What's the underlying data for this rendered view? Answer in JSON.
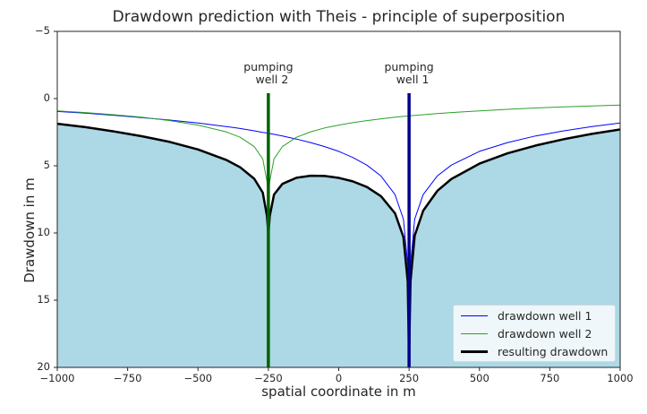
{
  "chart_data": {
    "type": "line",
    "title": "Drawdown prediction with Theis - principle of superposition",
    "xlabel": "spatial coordinate in m",
    "ylabel": "Drawdown in m",
    "xlim": [
      -1000,
      1000
    ],
    "ylim": [
      20,
      -5
    ],
    "y_inverted": true,
    "grid": false,
    "legend_position": "lower right",
    "xticks": [
      -1000,
      -750,
      -500,
      -250,
      0,
      250,
      500,
      750,
      1000
    ],
    "xtick_labels": [
      "−1000",
      "−750",
      "−500",
      "−250",
      "0",
      "250",
      "500",
      "750",
      "1000"
    ],
    "yticks": [
      -5,
      0,
      5,
      10,
      15,
      20
    ],
    "ytick_labels": [
      "−5",
      "0",
      "5",
      "10",
      "15",
      "20"
    ],
    "x": [
      -1000,
      -900,
      -800,
      -700,
      -600,
      -500,
      -400,
      -350,
      -300,
      -270,
      -255,
      -250,
      -245,
      -230,
      -200,
      -150,
      -100,
      -50,
      0,
      50,
      100,
      150,
      200,
      230,
      245,
      250,
      255,
      270,
      300,
      350,
      400,
      500,
      600,
      700,
      800,
      900,
      1000
    ],
    "series": [
      {
        "name": "drawdown well 1",
        "color": "#0000ff",
        "width": 1,
        "values": [
          0.96,
          1.09,
          1.24,
          1.41,
          1.6,
          1.82,
          2.08,
          2.23,
          2.4,
          2.51,
          2.56,
          2.58,
          2.6,
          2.66,
          2.78,
          3.01,
          3.27,
          3.57,
          3.93,
          4.38,
          4.95,
          5.76,
          7.14,
          8.97,
          12.3,
          18.0,
          12.3,
          8.97,
          7.14,
          5.76,
          4.95,
          3.93,
          3.27,
          2.78,
          2.4,
          2.08,
          1.82
        ]
      },
      {
        "name": "drawdown well 2",
        "color": "#2ca02c",
        "width": 1,
        "values": [
          0.91,
          1.04,
          1.2,
          1.39,
          1.64,
          1.97,
          2.47,
          2.88,
          3.57,
          4.49,
          6.15,
          7.5,
          6.15,
          4.49,
          3.57,
          2.88,
          2.47,
          2.19,
          1.97,
          1.79,
          1.64,
          1.51,
          1.39,
          1.33,
          1.3,
          1.29,
          1.28,
          1.25,
          1.2,
          1.12,
          1.04,
          0.91,
          0.8,
          0.7,
          0.62,
          0.55,
          0.48
        ]
      },
      {
        "name": "resulting drawdown",
        "color": "#000000",
        "width": 2.5,
        "fill": "#add8e6",
        "values": [
          1.87,
          2.13,
          2.44,
          2.8,
          3.23,
          3.79,
          4.56,
          5.11,
          5.97,
          6.99,
          8.71,
          10.1,
          8.75,
          7.14,
          6.35,
          5.89,
          5.74,
          5.76,
          5.9,
          6.16,
          6.58,
          7.26,
          8.53,
          10.3,
          13.6,
          19.3,
          13.6,
          10.2,
          8.34,
          6.87,
          5.99,
          4.84,
          4.07,
          3.49,
          3.02,
          2.63,
          2.3
        ]
      }
    ],
    "wells": [
      {
        "label": "pumping\nwell 2",
        "line1": "pumping",
        "line2": "well 2",
        "x": -250,
        "y_top": -0.4,
        "color": "#006400"
      },
      {
        "label": "pumping\nwell 1",
        "line1": "pumping",
        "line2": "well 1",
        "x": 250,
        "y_top": -0.4,
        "color": "#00008b"
      }
    ]
  }
}
